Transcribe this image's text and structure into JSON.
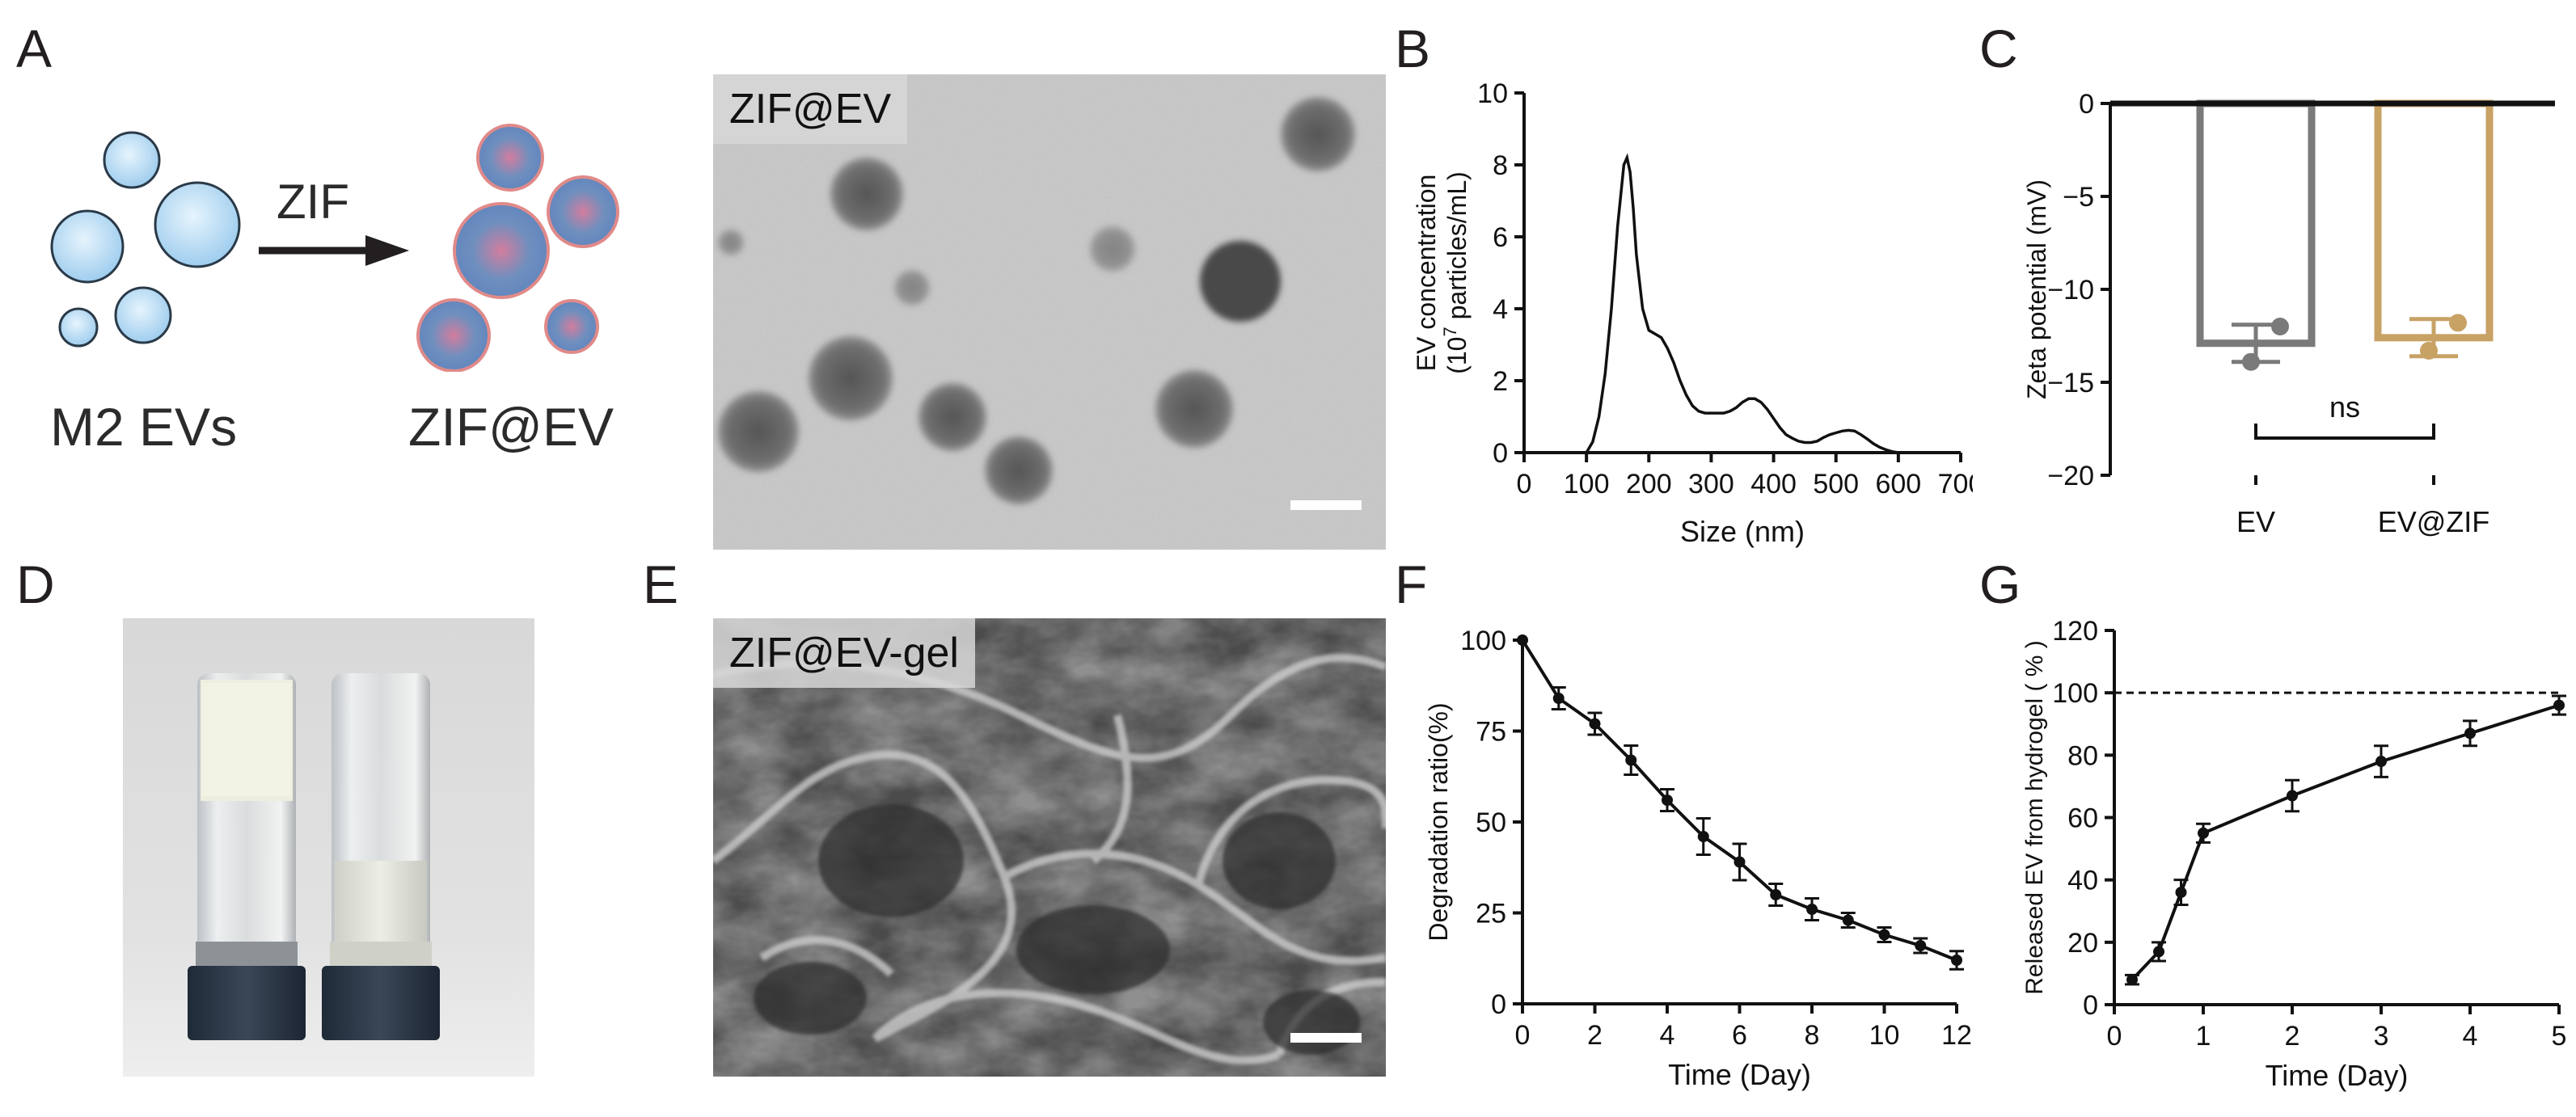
{
  "panels": {
    "A": "A",
    "B": "B",
    "C": "C",
    "D": "D",
    "E": "E",
    "F": "F",
    "G": "G"
  },
  "schematic": {
    "arrow_label": "ZIF",
    "left_label": "M2 EVs",
    "right_label": "ZIF@EV"
  },
  "tem": {
    "tag": "ZIF@EV"
  },
  "sem": {
    "tag": "ZIF@EV-gel"
  },
  "colors": {
    "ev": "#7a7a7a",
    "evzif": "#c8a265",
    "vesicle": "#b9dcf3",
    "coated": "#6f8fbe",
    "coat_edge": "#d76a6a"
  },
  "chart_data": [
    {
      "panel": "B",
      "type": "line",
      "xlabel": "Size (nm)",
      "ylabel_line1": "EV concentration",
      "ylabel_line2_prefix": "(10",
      "ylabel_line2_exp": "7",
      "ylabel_line2_suffix": " particles/mL)",
      "xlim": [
        0,
        700
      ],
      "ylim": [
        0,
        10
      ],
      "xticks": [
        "0",
        "100",
        "200",
        "300",
        "400",
        "500",
        "600",
        "700"
      ],
      "yticks": [
        "0",
        "2",
        "4",
        "6",
        "8",
        "10"
      ],
      "x": [
        100,
        110,
        120,
        130,
        140,
        150,
        160,
        165,
        170,
        175,
        180,
        190,
        200,
        210,
        220,
        230,
        240,
        250,
        260,
        270,
        280,
        290,
        300,
        310,
        320,
        330,
        340,
        350,
        360,
        370,
        380,
        390,
        400,
        410,
        420,
        430,
        440,
        450,
        460,
        470,
        480,
        490,
        500,
        510,
        520,
        530,
        540,
        550,
        560,
        570,
        580,
        590,
        600
      ],
      "values": [
        0,
        0.3,
        1.0,
        2.2,
        4.0,
        6.3,
        8.0,
        8.2,
        7.8,
        6.8,
        5.5,
        4.0,
        3.4,
        3.3,
        3.2,
        2.9,
        2.5,
        2.0,
        1.6,
        1.3,
        1.15,
        1.1,
        1.1,
        1.1,
        1.1,
        1.15,
        1.25,
        1.4,
        1.5,
        1.5,
        1.4,
        1.2,
        0.95,
        0.7,
        0.5,
        0.4,
        0.32,
        0.28,
        0.28,
        0.32,
        0.42,
        0.5,
        0.55,
        0.6,
        0.62,
        0.6,
        0.5,
        0.38,
        0.25,
        0.15,
        0.08,
        0.03,
        0
      ]
    },
    {
      "panel": "C",
      "type": "bar",
      "ylabel": "Zeta potential (mV)",
      "ylim": [
        -20,
        0
      ],
      "yticks": [
        "0",
        "−5",
        "−10",
        "−15",
        "−20"
      ],
      "categories": [
        "EV",
        "EV@ZIF"
      ],
      "values": [
        -12.9,
        -12.6
      ],
      "errors": [
        1.0,
        1.0
      ],
      "points": [
        [
          -12.0,
          -13.9
        ],
        [
          -11.8,
          -13.3
        ]
      ],
      "annotation": "ns"
    },
    {
      "panel": "F",
      "type": "line",
      "xlabel": "Time (Day)",
      "ylabel": "Degradation ratio(%)",
      "xlim": [
        0,
        12
      ],
      "ylim": [
        0,
        100
      ],
      "xticks": [
        "0",
        "2",
        "4",
        "6",
        "8",
        "10",
        "12"
      ],
      "yticks": [
        "0",
        "25",
        "50",
        "75",
        "100"
      ],
      "x": [
        0,
        1,
        2,
        3,
        4,
        5,
        6,
        7,
        8,
        9,
        10,
        11,
        12
      ],
      "values": [
        100,
        84,
        77,
        67,
        56,
        46,
        39,
        30,
        26,
        23,
        19,
        16,
        12
      ],
      "errors": [
        0,
        3,
        3,
        4,
        3,
        5,
        5,
        3,
        3,
        2,
        2,
        2,
        2.5
      ]
    },
    {
      "panel": "G",
      "type": "line",
      "xlabel": "Time (Day)",
      "ylabel": "Released EV from hydrogel ( % )",
      "xlim": [
        0,
        5
      ],
      "ylim": [
        0,
        120
      ],
      "xticks": [
        "0",
        "1",
        "2",
        "3",
        "4",
        "5"
      ],
      "yticks": [
        "0",
        "20",
        "40",
        "60",
        "80",
        "100",
        "120"
      ],
      "x": [
        0.2,
        0.5,
        0.75,
        1,
        2,
        3,
        4,
        5
      ],
      "values": [
        8,
        17,
        36,
        55,
        67,
        78,
        87,
        96
      ],
      "errors": [
        1.5,
        3,
        4,
        3,
        5,
        5,
        4,
        3
      ],
      "reference_line": 100
    }
  ]
}
